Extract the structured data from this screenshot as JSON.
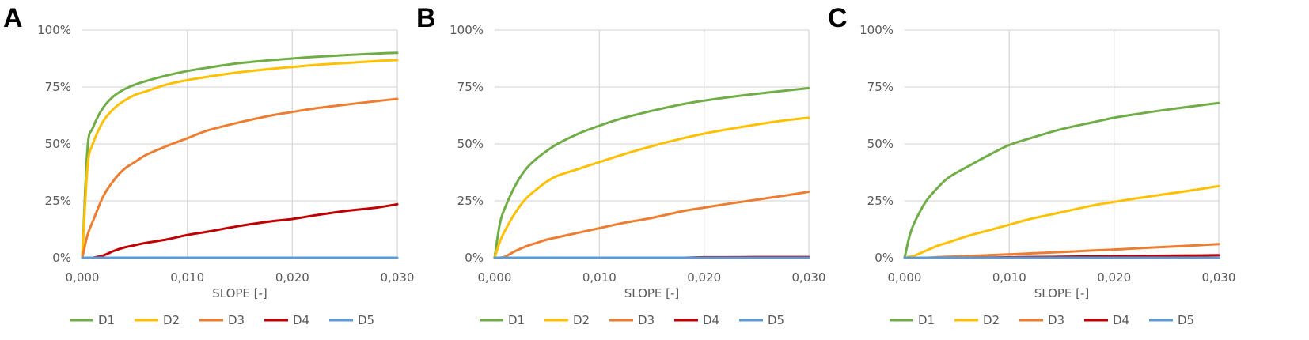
{
  "chart_data": [
    {
      "panel": "A",
      "type": "line",
      "xlabel": "SLOPE [-]",
      "ylabel": "",
      "xlim": [
        0,
        0.03
      ],
      "ylim": [
        0,
        1
      ],
      "x_ticks": [
        "0,000",
        "0,010",
        "0,020",
        "0,030"
      ],
      "y_ticks": [
        "0%",
        "25%",
        "50%",
        "75%",
        "100%"
      ],
      "grid": true,
      "legend_position": "bottom",
      "x": [
        0,
        0.0005,
        0.001,
        0.002,
        0.003,
        0.004,
        0.005,
        0.006,
        0.008,
        0.01,
        0.012,
        0.015,
        0.018,
        0.02,
        0.022,
        0.025,
        0.028,
        0.03
      ],
      "series": [
        {
          "name": "D1",
          "color": "#70ad47",
          "values": [
            0,
            0.48,
            0.57,
            0.66,
            0.71,
            0.74,
            0.76,
            0.775,
            0.8,
            0.82,
            0.835,
            0.855,
            0.868,
            0.875,
            0.882,
            0.89,
            0.897,
            0.9
          ]
        },
        {
          "name": "D2",
          "color": "#ffc000",
          "values": [
            0,
            0.4,
            0.5,
            0.6,
            0.655,
            0.69,
            0.715,
            0.73,
            0.76,
            0.78,
            0.795,
            0.815,
            0.83,
            0.838,
            0.846,
            0.855,
            0.864,
            0.868
          ]
        },
        {
          "name": "D3",
          "color": "#ed7d31",
          "values": [
            0,
            0.1,
            0.16,
            0.27,
            0.34,
            0.39,
            0.42,
            0.45,
            0.49,
            0.525,
            0.56,
            0.595,
            0.625,
            0.64,
            0.655,
            0.672,
            0.688,
            0.698
          ]
        },
        {
          "name": "D4",
          "color": "#c00000",
          "values": [
            0,
            0,
            0,
            0.01,
            0.03,
            0.045,
            0.055,
            0.065,
            0.08,
            0.1,
            0.115,
            0.14,
            0.16,
            0.17,
            0.185,
            0.205,
            0.22,
            0.235
          ]
        },
        {
          "name": "D5",
          "color": "#5b9bd5",
          "values": [
            0,
            0,
            0,
            0,
            0,
            0,
            0,
            0,
            0,
            0,
            0,
            0,
            0,
            0,
            0,
            0,
            0,
            0
          ]
        }
      ]
    },
    {
      "panel": "B",
      "type": "line",
      "xlabel": "SLOPE [-]",
      "ylabel": "",
      "xlim": [
        0,
        0.03
      ],
      "ylim": [
        0,
        1
      ],
      "x_ticks": [
        "0,000",
        "0,010",
        "0,020",
        "0,030"
      ],
      "y_ticks": [
        "0%",
        "25%",
        "50%",
        "75%",
        "100%"
      ],
      "grid": true,
      "legend_position": "bottom",
      "x": [
        0,
        0.0005,
        0.001,
        0.002,
        0.003,
        0.004,
        0.005,
        0.006,
        0.008,
        0.01,
        0.012,
        0.015,
        0.018,
        0.02,
        0.022,
        0.025,
        0.028,
        0.03
      ],
      "series": [
        {
          "name": "D1",
          "color": "#70ad47",
          "values": [
            0,
            0.15,
            0.22,
            0.32,
            0.39,
            0.435,
            0.47,
            0.5,
            0.545,
            0.58,
            0.61,
            0.645,
            0.675,
            0.69,
            0.703,
            0.72,
            0.735,
            0.745
          ]
        },
        {
          "name": "D2",
          "color": "#ffc000",
          "values": [
            0,
            0.07,
            0.12,
            0.2,
            0.26,
            0.3,
            0.335,
            0.36,
            0.39,
            0.42,
            0.45,
            0.49,
            0.525,
            0.545,
            0.562,
            0.585,
            0.605,
            0.615
          ]
        },
        {
          "name": "D3",
          "color": "#ed7d31",
          "values": [
            0,
            0,
            0.005,
            0.03,
            0.05,
            0.065,
            0.08,
            0.09,
            0.11,
            0.13,
            0.15,
            0.175,
            0.205,
            0.22,
            0.235,
            0.255,
            0.275,
            0.29
          ]
        },
        {
          "name": "D4",
          "color": "#c00000",
          "values": [
            0,
            0,
            0,
            0,
            0,
            0,
            0,
            0,
            0,
            0,
            0,
            0,
            0,
            0.002,
            0.002,
            0.003,
            0.003,
            0.003
          ]
        },
        {
          "name": "D5",
          "color": "#5b9bd5",
          "values": [
            0,
            0,
            0,
            0,
            0,
            0,
            0,
            0,
            0,
            0,
            0,
            0,
            0,
            0,
            0,
            0,
            0,
            0
          ]
        }
      ]
    },
    {
      "panel": "C",
      "type": "line",
      "xlabel": "SLOPE [-]",
      "ylabel": "",
      "xlim": [
        0,
        0.03
      ],
      "ylim": [
        0,
        1
      ],
      "x_ticks": [
        "0,000",
        "0,010",
        "0,020",
        "0,030"
      ],
      "y_ticks": [
        "0%",
        "25%",
        "50%",
        "75%",
        "100%"
      ],
      "grid": true,
      "legend_position": "bottom",
      "x": [
        0,
        0.0005,
        0.001,
        0.002,
        0.003,
        0.004,
        0.005,
        0.006,
        0.008,
        0.01,
        0.012,
        0.015,
        0.018,
        0.02,
        0.022,
        0.025,
        0.028,
        0.03
      ],
      "series": [
        {
          "name": "D1",
          "color": "#70ad47",
          "values": [
            0,
            0.1,
            0.16,
            0.245,
            0.3,
            0.345,
            0.375,
            0.4,
            0.45,
            0.495,
            0.525,
            0.565,
            0.595,
            0.615,
            0.63,
            0.65,
            0.668,
            0.68
          ]
        },
        {
          "name": "D2",
          "color": "#ffc000",
          "values": [
            0,
            0.005,
            0.01,
            0.03,
            0.05,
            0.065,
            0.08,
            0.095,
            0.12,
            0.145,
            0.17,
            0.2,
            0.23,
            0.245,
            0.26,
            0.28,
            0.3,
            0.315
          ]
        },
        {
          "name": "D3",
          "color": "#ed7d31",
          "values": [
            0,
            0,
            0,
            0,
            0.002,
            0.004,
            0.006,
            0.008,
            0.011,
            0.015,
            0.019,
            0.025,
            0.032,
            0.036,
            0.041,
            0.048,
            0.055,
            0.06
          ]
        },
        {
          "name": "D4",
          "color": "#c00000",
          "values": [
            0,
            0,
            0,
            0,
            0,
            0,
            0,
            0,
            0.001,
            0.002,
            0.003,
            0.004,
            0.006,
            0.007,
            0.008,
            0.009,
            0.01,
            0.011
          ]
        },
        {
          "name": "D5",
          "color": "#5b9bd5",
          "values": [
            0,
            0,
            0,
            0,
            0,
            0,
            0,
            0,
            0,
            0,
            0,
            0,
            0,
            0,
            0,
            0,
            0,
            0
          ]
        }
      ]
    }
  ]
}
